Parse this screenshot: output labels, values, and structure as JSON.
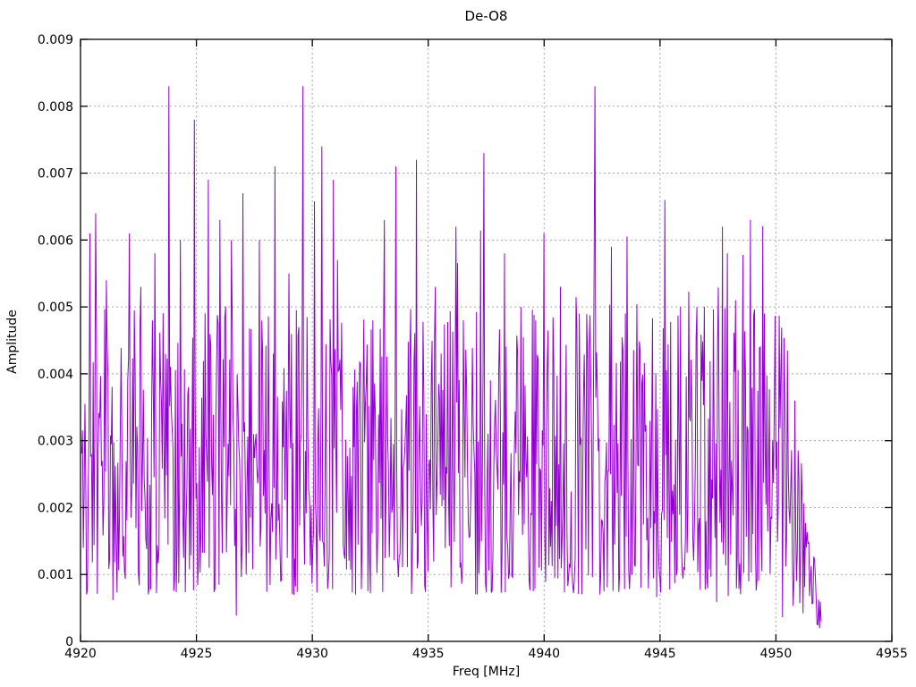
{
  "figure": {
    "background": "#ffffff",
    "border_color": "#000000",
    "text_color": "#000000"
  },
  "chart_data": {
    "type": "line",
    "title": "De-O8",
    "xlabel": "Freq [MHz]",
    "ylabel": "Amplitude",
    "xlim": [
      4920,
      4955
    ],
    "ylim": [
      0,
      0.009
    ],
    "x_ticks": [
      4920,
      4925,
      4930,
      4935,
      4940,
      4945,
      4950,
      4955
    ],
    "x_tick_labels": [
      "4920",
      "4925",
      "4930",
      "4935",
      "4940",
      "4945",
      "4950",
      "4955"
    ],
    "y_ticks": [
      0,
      0.001,
      0.002,
      0.003,
      0.004,
      0.005,
      0.006,
      0.007,
      0.008,
      0.009
    ],
    "y_tick_labels": [
      "0",
      "0.001",
      "0.002",
      "0.003",
      "0.004",
      "0.005",
      "0.006",
      "0.007",
      "0.008",
      "0.009"
    ],
    "grid": true,
    "legend": "none",
    "line_color": "#9400d3",
    "grid_color": "#a8a8a8",
    "signal": {
      "x_start": 4920.05,
      "x_end": 4951.95,
      "points": 900,
      "seed": 42,
      "noise_floor": 0.0007,
      "noise_span": 0.0043,
      "tail_start": 4950.3,
      "tail_slope": 0.55
    },
    "peaks": [
      [
        4920.4,
        0.0061
      ],
      [
        4921.1,
        0.0054
      ],
      [
        4922.1,
        0.0061
      ],
      [
        4922.6,
        0.0053
      ],
      [
        4923.2,
        0.0058
      ],
      [
        4923.8,
        0.0083
      ],
      [
        4924.3,
        0.006
      ],
      [
        4924.9,
        0.0078
      ],
      [
        4925.5,
        0.0069
      ],
      [
        4926.0,
        0.0063
      ],
      [
        4926.5,
        0.006
      ],
      [
        4927.0,
        0.0067
      ],
      [
        4927.7,
        0.006
      ],
      [
        4928.4,
        0.0071
      ],
      [
        4929.0,
        0.0055
      ],
      [
        4929.6,
        0.0083
      ],
      [
        4930.4,
        0.0074
      ],
      [
        4930.9,
        0.0069
      ],
      [
        4931.1,
        0.0057
      ],
      [
        4932.6,
        0.0048
      ],
      [
        4933.1,
        0.0063
      ],
      [
        4933.6,
        0.0071
      ],
      [
        4934.5,
        0.0072
      ],
      [
        4935.3,
        0.0053
      ],
      [
        4936.2,
        0.0062
      ],
      [
        4937.4,
        0.0073
      ],
      [
        4938.3,
        0.0058
      ],
      [
        4939.0,
        0.005
      ],
      [
        4940.0,
        0.0061
      ],
      [
        4940.7,
        0.0053
      ],
      [
        4941.5,
        0.0049
      ],
      [
        4942.2,
        0.0083
      ],
      [
        4942.9,
        0.0059
      ],
      [
        4943.5,
        0.0049
      ],
      [
        4945.2,
        0.0066
      ],
      [
        4945.9,
        0.005
      ],
      [
        4946.6,
        0.005
      ],
      [
        4947.7,
        0.0062
      ],
      [
        4947.9,
        0.0058
      ],
      [
        4948.9,
        0.0063
      ],
      [
        4949.5,
        0.0049
      ],
      [
        4950.8,
        0.0036
      ]
    ]
  }
}
